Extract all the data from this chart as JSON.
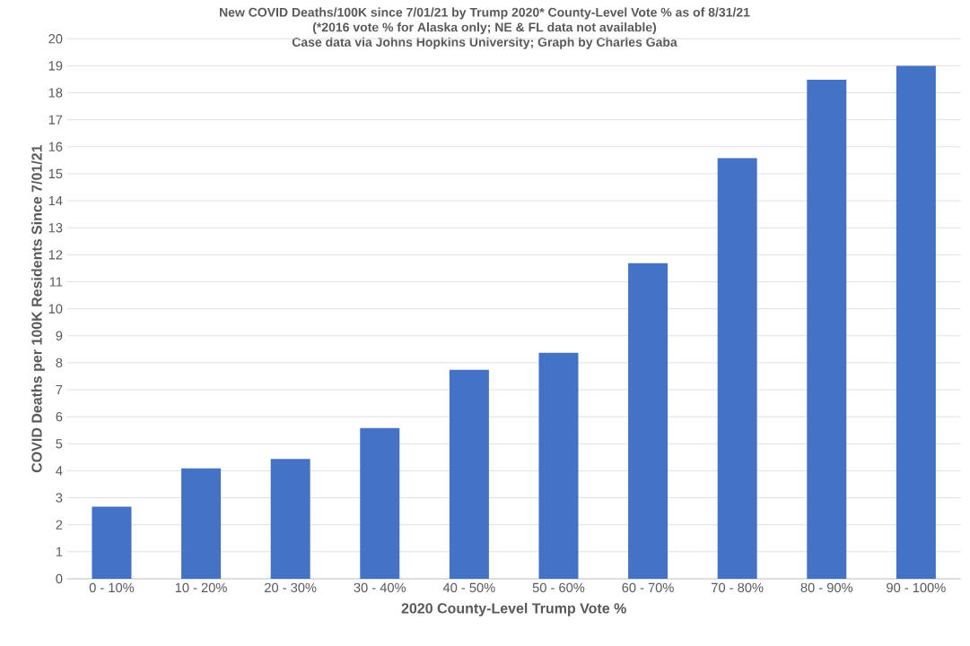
{
  "chart_data": {
    "type": "bar",
    "title": "New COVID Deaths/100K since 7/01/21 by Trump 2020* County-Level Vote % as of 8/31/21",
    "subtitle": "(*2016 vote % for Alaska only; NE & FL data not available)",
    "annotations": [
      "Case data via Johns Hopkins University; Graph by Charles Gaba"
    ],
    "xlabel": "2020 County-Level Trump Vote %",
    "ylabel": "COVID Deaths per 100K Residents Since 7/01/21",
    "categories": [
      "0 - 10%",
      "10 - 20%",
      "20 - 30%",
      "30 - 40%",
      "40 - 50%",
      "50 - 60%",
      "60 - 70%",
      "70 - 80%",
      "80 - 90%",
      "90 - 100%"
    ],
    "values": [
      2.67,
      4.09,
      4.44,
      5.58,
      7.74,
      8.37,
      11.69,
      15.58,
      18.48,
      19.0
    ],
    "color": "#4472c4",
    "ylim": [
      0,
      20
    ],
    "yticks": [
      0,
      1,
      2,
      3,
      4,
      5,
      6,
      7,
      8,
      9,
      10,
      11,
      12,
      13,
      14,
      15,
      16,
      17,
      18,
      19,
      20
    ],
    "grid": "y"
  }
}
